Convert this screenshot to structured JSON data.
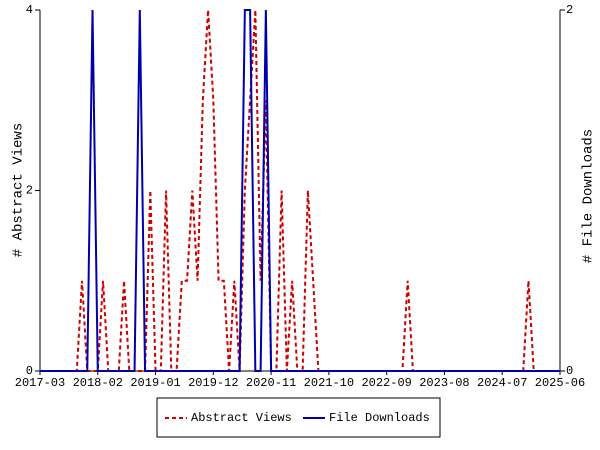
{
  "chart_data": {
    "type": "line",
    "y_label": "# Abstract Views",
    "y2_label": "# File Downloads",
    "categories": [
      "2017-03",
      null,
      null,
      null,
      null,
      null,
      null,
      null,
      null,
      null,
      null,
      "2018-02",
      null,
      null,
      null,
      null,
      null,
      null,
      null,
      null,
      null,
      null,
      "2019-01",
      null,
      null,
      null,
      null,
      null,
      null,
      null,
      null,
      null,
      null,
      "2019-12",
      null,
      null,
      null,
      null,
      null,
      null,
      null,
      null,
      null,
      null,
      "2020-11",
      null,
      null,
      null,
      null,
      null,
      null,
      null,
      null,
      null,
      null,
      "2021-10",
      null,
      null,
      null,
      null,
      null,
      null,
      null,
      null,
      null,
      null,
      "2022-09",
      null,
      null,
      null,
      null,
      null,
      null,
      null,
      null,
      null,
      null,
      "2023-08",
      null,
      null,
      null,
      null,
      null,
      null,
      null,
      null,
      null,
      null,
      "2024-07",
      null,
      null,
      null,
      null,
      null,
      null,
      null,
      null,
      null,
      null,
      "2025-06"
    ],
    "series": [
      {
        "name": "Abstract Views",
        "color": "#cc0000",
        "dashed": true,
        "axis": "y",
        "values": [
          0,
          0,
          0,
          0,
          0,
          0,
          0,
          0,
          1,
          0,
          0,
          0,
          1,
          0,
          0,
          0,
          1,
          0,
          0,
          0,
          0,
          2,
          0,
          0,
          2,
          0,
          0,
          1,
          1,
          2,
          1,
          3,
          4,
          3,
          1,
          1,
          0,
          1,
          0,
          2,
          3,
          4,
          1,
          3,
          0,
          0,
          2,
          0,
          1,
          0,
          0,
          2,
          1,
          0,
          0,
          0,
          0,
          0,
          0,
          0,
          0,
          0,
          0,
          0,
          0,
          0,
          0,
          0,
          0,
          0,
          1,
          0,
          0,
          0,
          0,
          0,
          0,
          0,
          0,
          0,
          0,
          0,
          0,
          0,
          0,
          0,
          0,
          0,
          0,
          0,
          0,
          0,
          0,
          1,
          0,
          0,
          0,
          0,
          0,
          0
        ]
      },
      {
        "name": "File Downloads",
        "color": "#0000aa",
        "dashed": false,
        "axis": "y2",
        "values": [
          0,
          0,
          0,
          0,
          0,
          0,
          0,
          0,
          0,
          0,
          2,
          0,
          0,
          0,
          0,
          0,
          0,
          0,
          0,
          2,
          0,
          0,
          0,
          0,
          0,
          0,
          0,
          0,
          0,
          0,
          0,
          0,
          0,
          0,
          0,
          0,
          0,
          0,
          0,
          2,
          2,
          0,
          0,
          2,
          0,
          0,
          0,
          0,
          0,
          0,
          0,
          0,
          0,
          0,
          0,
          0,
          0,
          0,
          0,
          0,
          0,
          0,
          0,
          0,
          0,
          0,
          0,
          0,
          0,
          0,
          0,
          0,
          0,
          0,
          0,
          0,
          0,
          0,
          0,
          0,
          0,
          0,
          0,
          0,
          0,
          0,
          0,
          0,
          0,
          0,
          0,
          0,
          0,
          0,
          0,
          0,
          0,
          0,
          0,
          0
        ]
      }
    ],
    "ylim": [
      0,
      4
    ],
    "yticks": [
      0,
      2,
      4
    ],
    "y2lim": [
      0,
      2
    ],
    "y2ticks": [
      0,
      2
    ],
    "legend": "bottom"
  }
}
